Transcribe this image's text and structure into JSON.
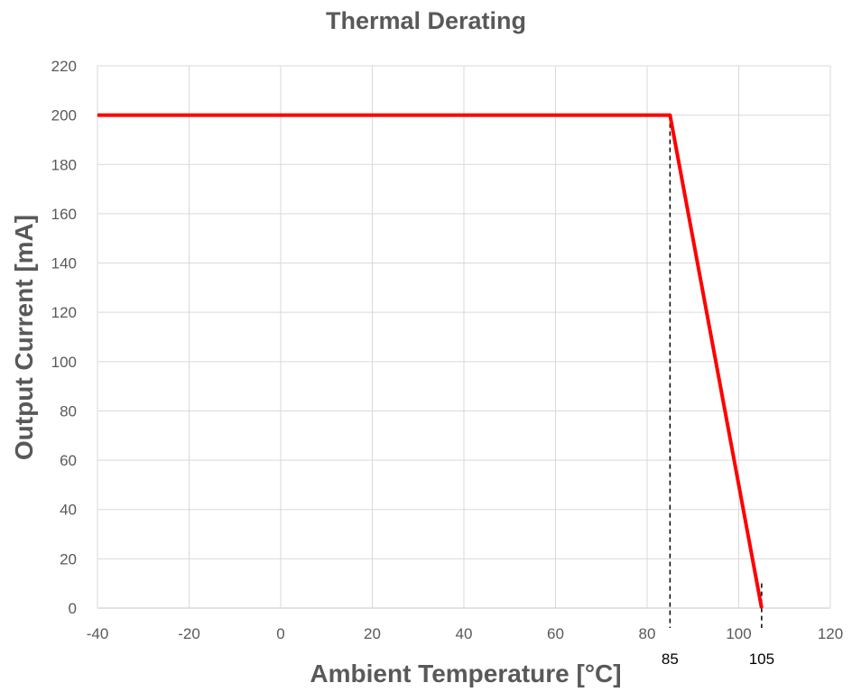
{
  "chart_data": {
    "type": "line",
    "title": "Thermal Derating",
    "xlabel": "Ambient Temperature [°C]",
    "ylabel": "Output Current [mA]",
    "xlim": [
      -40,
      120
    ],
    "ylim": [
      0,
      220
    ],
    "x_ticks": [
      "-40",
      "-20",
      "0",
      "20",
      "40",
      "60",
      "80",
      "100",
      "120"
    ],
    "y_ticks": [
      "0",
      "20",
      "40",
      "60",
      "80",
      "100",
      "120",
      "140",
      "160",
      "180",
      "200",
      "220"
    ],
    "grid": true,
    "legend": "none",
    "series": [
      {
        "color": "#ff0000",
        "points": [
          [
            -40,
            200
          ],
          [
            85,
            200
          ],
          [
            105,
            0
          ]
        ]
      }
    ],
    "annotations": [
      {
        "x": 85,
        "text": "85",
        "style": "dashed vertical marker"
      },
      {
        "x": 105,
        "text": "105",
        "style": "dashed vertical marker"
      }
    ]
  }
}
